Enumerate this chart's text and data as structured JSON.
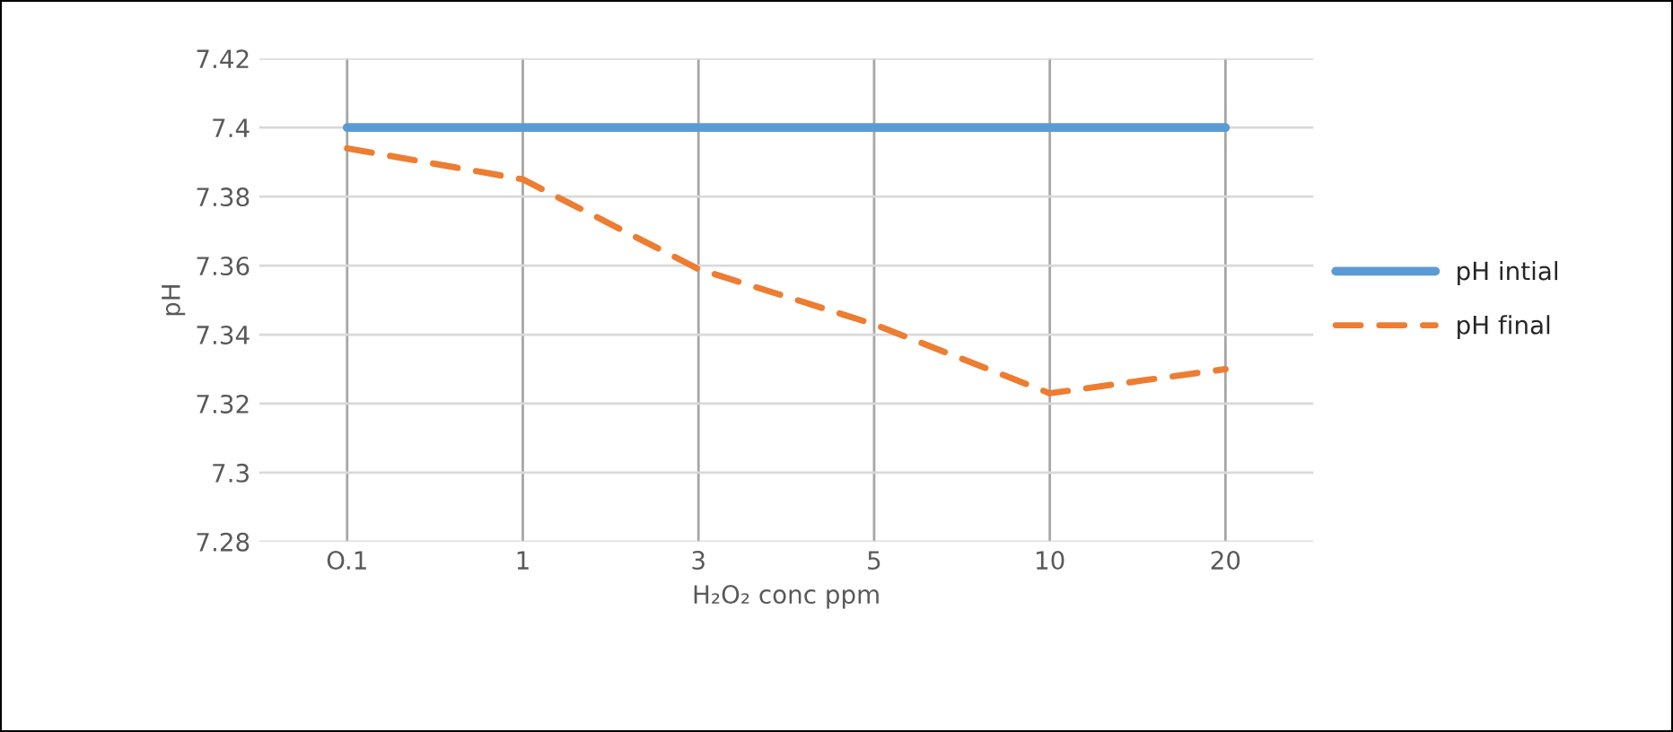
{
  "chart_data": {
    "type": "line",
    "xlabel": "H₂O₂ conc ppm",
    "ylabel": "pH",
    "categories": [
      "O.1",
      "1",
      "3",
      "5",
      "10",
      "20"
    ],
    "series": [
      {
        "name": "pH intial",
        "color": "#5b9bd5",
        "values": [
          7.4,
          7.4,
          7.4,
          7.4,
          7.4,
          7.4
        ],
        "line_style": "solid"
      },
      {
        "name": "pH final",
        "color": "#ed7d31",
        "values": [
          7.394,
          7.385,
          7.359,
          7.343,
          7.323,
          7.33
        ],
        "line_style": "dashed"
      }
    ],
    "ylim": [
      7.28,
      7.42
    ],
    "yticks": [
      7.28,
      7.3,
      7.32,
      7.34,
      7.36,
      7.38,
      7.4,
      7.42
    ],
    "grid": true,
    "legend": "right"
  }
}
